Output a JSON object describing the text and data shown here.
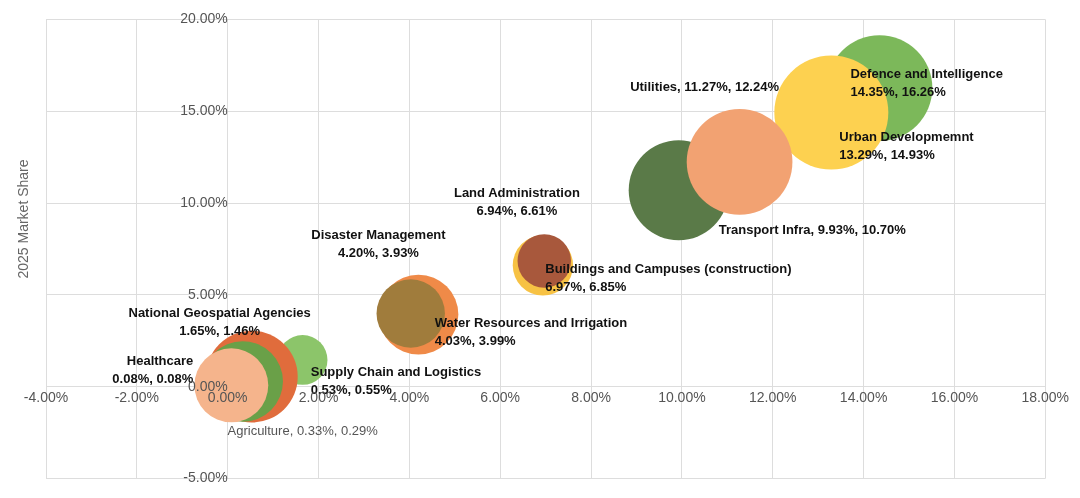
{
  "chart_data": {
    "type": "bubble",
    "ylabel": "2025 Market Share",
    "x": [
      14.35,
      13.29,
      9.93,
      11.27,
      6.94,
      6.97,
      4.2,
      4.03,
      1.65,
      0.53,
      0.33,
      0.08
    ],
    "values": [
      16.26,
      14.93,
      10.7,
      12.24,
      6.61,
      6.85,
      3.93,
      3.99,
      1.46,
      0.55,
      0.29,
      0.08
    ],
    "sizes": [
      0.86,
      1,
      0.77,
      0.86,
      0.28,
      0.22,
      0.49,
      0.36,
      0.19,
      0.65,
      0.5,
      0.42
    ],
    "colors": [
      "#7cb85a",
      "#fdd150",
      "#5a7a48",
      "#f2a272",
      "#f7c244",
      "#a8583c",
      "#ef8a48",
      "#a07c3c",
      "#8cc56a",
      "#e06c3c",
      "#6aa048",
      "#f5b48c"
    ],
    "value_labels": [
      "Defence and Intelligence\n14.35%, 16.26%",
      "Urban Developmemnt\n13.29%, 14.93%",
      "Transport Infra, 9.93%, 10.70%",
      "Utilities, 11.27%, 12.24%",
      "Land Administration\n6.94%, 6.61%",
      "Buildings and Campuses (construction)\n6.97%, 6.85%",
      "Disaster Management\n4.20%, 3.93%",
      "Water Resources and Irrigation\n4.03%, 3.99%",
      "National Geospatial Agencies\n1.65%, 1.46%",
      "Supply Chain and Logistics\n0.53%, 0.55%",
      "Agriculture, 0.33%, 0.29%",
      "Healthcare\n0.08%, 0.08%"
    ],
    "xlim": [
      -4,
      18
    ],
    "xticks": [
      {
        "value": -4,
        "label": "-4.00%"
      },
      {
        "value": -2,
        "label": "-2.00%"
      },
      {
        "value": 0,
        "label": "0.00%"
      },
      {
        "value": 2,
        "label": "2.00%"
      },
      {
        "value": 4,
        "label": "4.00%"
      },
      {
        "value": 6,
        "label": "6.00%"
      },
      {
        "value": 8,
        "label": "8.00%"
      },
      {
        "value": 10,
        "label": "10.00%"
      },
      {
        "value": 12,
        "label": "12.00%"
      },
      {
        "value": 14,
        "label": "14.00%"
      },
      {
        "value": 16,
        "label": "16.00%"
      },
      {
        "value": 18,
        "label": "18.00%"
      }
    ],
    "ylim": [
      -5,
      20
    ],
    "yticks": [
      {
        "value": -5,
        "label": "-5.00%"
      },
      {
        "value": 0,
        "label": "0.00%"
      },
      {
        "value": 5,
        "label": "5.00%"
      },
      {
        "value": 10,
        "label": "10.00%"
      },
      {
        "value": 15,
        "label": "15.00%"
      },
      {
        "value": 20,
        "label": "20.00%"
      }
    ],
    "grid": true,
    "legend": false
  }
}
